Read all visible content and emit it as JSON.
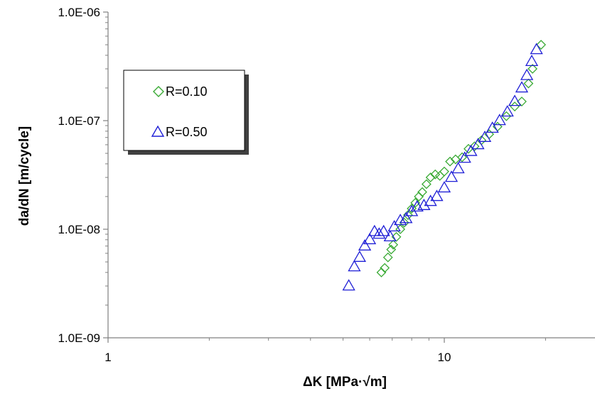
{
  "chart_data": {
    "type": "scatter",
    "title": "",
    "xlabel": "ΔK [MPa·√m]",
    "ylabel": "da/dN [m/cycle]",
    "xscale": "log",
    "yscale": "log",
    "xlim": [
      1,
      24
    ],
    "ylim": [
      1e-09,
      1e-06
    ],
    "x_ticks": [
      {
        "value": 1,
        "label": "1"
      },
      {
        "value": 10,
        "label": "10"
      }
    ],
    "y_ticks": [
      {
        "value": 1e-09,
        "label": "1.0E-09"
      },
      {
        "value": 1e-08,
        "label": "1.0E-08"
      },
      {
        "value": 1e-07,
        "label": "1.0E-07"
      },
      {
        "value": 1e-06,
        "label": "1.0E-06"
      }
    ],
    "grid": false,
    "legend_position": "upper-left",
    "series": [
      {
        "name": "R=0.10",
        "marker": "diamond",
        "color": "#3aaa35",
        "points": [
          [
            6.5,
            4e-09
          ],
          [
            6.65,
            4.4e-09
          ],
          [
            6.8,
            5.5e-09
          ],
          [
            6.95,
            6.5e-09
          ],
          [
            7.05,
            7.2e-09
          ],
          [
            7.2,
            8.5e-09
          ],
          [
            7.4,
            1e-08
          ],
          [
            7.6,
            1.15e-08
          ],
          [
            7.8,
            1.35e-08
          ],
          [
            8.0,
            1.55e-08
          ],
          [
            8.2,
            1.75e-08
          ],
          [
            8.4,
            2e-08
          ],
          [
            8.6,
            2.2e-08
          ],
          [
            8.85,
            2.6e-08
          ],
          [
            9.1,
            3e-08
          ],
          [
            9.4,
            3.2e-08
          ],
          [
            9.7,
            3.1e-08
          ],
          [
            10.0,
            3.4e-08
          ],
          [
            10.4,
            4.2e-08
          ],
          [
            10.8,
            4.4e-08
          ],
          [
            11.3,
            4.6e-08
          ],
          [
            11.8,
            5.5e-08
          ],
          [
            12.3,
            5.8e-08
          ],
          [
            12.9,
            6.6e-08
          ],
          [
            13.6,
            7.5e-08
          ],
          [
            14.4,
            8.8e-08
          ],
          [
            15.3,
            1.1e-07
          ],
          [
            16.2,
            1.35e-07
          ],
          [
            17.0,
            1.5e-07
          ],
          [
            17.8,
            2.2e-07
          ],
          [
            18.3,
            3e-07
          ],
          [
            19.4,
            5e-07
          ]
        ]
      },
      {
        "name": "R=0.50",
        "marker": "triangle",
        "color": "#1f1fd6",
        "points": [
          [
            5.2,
            3e-09
          ],
          [
            5.4,
            4.5e-09
          ],
          [
            5.6,
            5.5e-09
          ],
          [
            5.8,
            7e-09
          ],
          [
            6.0,
            8e-09
          ],
          [
            6.2,
            9.5e-09
          ],
          [
            6.4,
            9e-09
          ],
          [
            6.6,
            9.5e-09
          ],
          [
            6.9,
            8.5e-09
          ],
          [
            7.1,
            1.05e-08
          ],
          [
            7.4,
            1.2e-08
          ],
          [
            7.7,
            1.25e-08
          ],
          [
            8.0,
            1.45e-08
          ],
          [
            8.3,
            1.6e-08
          ],
          [
            8.7,
            1.65e-08
          ],
          [
            9.1,
            1.8e-08
          ],
          [
            9.5,
            2e-08
          ],
          [
            10.0,
            2.4e-08
          ],
          [
            10.5,
            3e-08
          ],
          [
            11.0,
            3.6e-08
          ],
          [
            11.5,
            4.5e-08
          ],
          [
            12.0,
            5.2e-08
          ],
          [
            12.6,
            6e-08
          ],
          [
            13.2,
            7e-08
          ],
          [
            13.9,
            8.5e-08
          ],
          [
            14.6,
            1e-07
          ],
          [
            15.4,
            1.2e-07
          ],
          [
            16.2,
            1.5e-07
          ],
          [
            17.0,
            2e-07
          ],
          [
            17.6,
            2.6e-07
          ],
          [
            18.2,
            3.5e-07
          ],
          [
            18.8,
            4.5e-07
          ]
        ]
      }
    ]
  }
}
